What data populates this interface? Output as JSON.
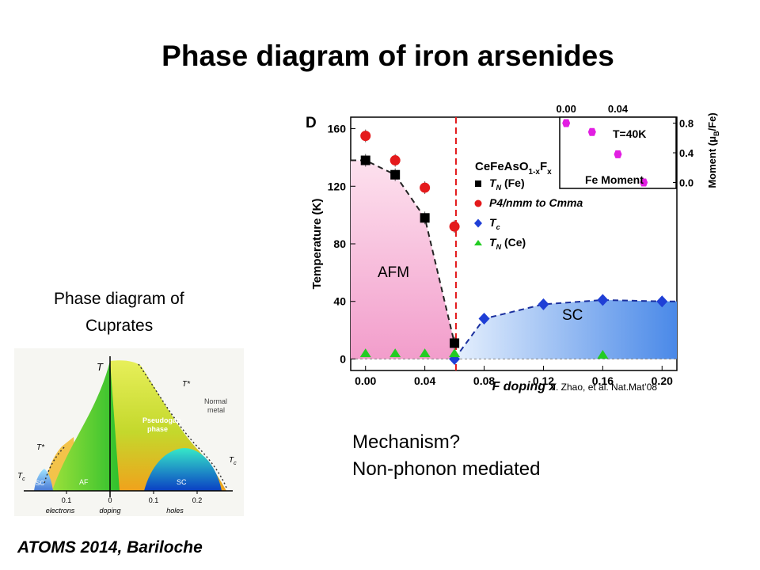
{
  "slide": {
    "title": "Phase diagram of iron arsenides",
    "cuprate_caption_line1": "Phase diagram of",
    "cuprate_caption_line2": "Cuprates",
    "mechanism_line1": "Mechanism?",
    "mechanism_line2": "Non-phonon mediated",
    "footer": "ATOMS 2014, Bariloche"
  },
  "colors": {
    "afm_fill": "#f7a8d2",
    "sc_fill": "#6fa3ec",
    "tn_fe": "#000000",
    "structural": "#e41a1c",
    "tc": "#1f3fd6",
    "tn_ce": "#22cc22",
    "moment": "#e21ee2",
    "divider": "#e41a1c"
  },
  "chart_data": [
    {
      "type": "scatter",
      "panel_label": "D",
      "xlabel": "F doping x",
      "ylabel": "Temperature (K)",
      "xlim": [
        -0.01,
        0.21
      ],
      "ylim": [
        -8,
        168
      ],
      "xticks": [
        "0.00",
        "0.04",
        "0.08",
        "0.12",
        "0.16",
        "0.20"
      ],
      "xtick_values": [
        0,
        0.04,
        0.08,
        0.12,
        0.16,
        0.2
      ],
      "yticks": [
        "0",
        "40",
        "80",
        "120",
        "160"
      ],
      "ytick_values": [
        0,
        40,
        80,
        120,
        160
      ],
      "vertical_line_x": 0.061,
      "compound": "CeFeAsO",
      "compound_sub": "1-x",
      "compound_tail": "F",
      "compound_sub2": "x",
      "regions": [
        "AFM",
        "SC"
      ],
      "credit": "J. Zhao, et al. Nat.Mat’08",
      "series": [
        {
          "name": "T",
          "sub": "N",
          "paren": "(Fe)",
          "marker": "square",
          "x": [
            0,
            0.02,
            0.04,
            0.06
          ],
          "y": [
            138,
            128,
            98,
            11
          ]
        },
        {
          "name": "P4/nmm to Cmma",
          "marker": "circle",
          "x": [
            0,
            0.02,
            0.04,
            0.06
          ],
          "y": [
            155,
            138,
            119,
            92
          ]
        },
        {
          "name": "T",
          "sub": "c",
          "marker": "diamond",
          "x": [
            0.06,
            0.08,
            0.12,
            0.16,
            0.2
          ],
          "y": [
            0,
            28,
            38,
            41,
            40
          ]
        },
        {
          "name": "T",
          "sub": "N",
          "paren": "(Ce)",
          "marker": "triangle",
          "x": [
            0,
            0.02,
            0.04,
            0.06,
            0.16
          ],
          "y": [
            4,
            4,
            4,
            4,
            3
          ]
        }
      ],
      "inset": {
        "type": "scatter",
        "label": "Fe Moment",
        "temperature_label": "T=40K",
        "ylabel": "Moment (μ",
        "ylabel_sub": "B",
        "ylabel_tail": "/Fe)",
        "xlim": [
          -0.005,
          0.085
        ],
        "ylim": [
          -0.08,
          0.88
        ],
        "xticks": [
          "0.00",
          "0.04"
        ],
        "xtick_values": [
          0,
          0.04
        ],
        "yticks": [
          "0.0",
          "0.4",
          "0.8"
        ],
        "ytick_values": [
          0,
          0.4,
          0.8
        ],
        "x": [
          0,
          0.02,
          0.04,
          0.06
        ],
        "y": [
          0.8,
          0.68,
          0.38,
          0.0
        ]
      }
    },
    {
      "type": "area",
      "axis_title": "T",
      "xtick_labels": [
        "0.1",
        "0",
        "0.1",
        "0.2"
      ],
      "xtick_values": [
        -0.1,
        0,
        0.1,
        0.2
      ],
      "xlabels": [
        "electrons",
        "doping",
        "holes"
      ],
      "xlim": [
        -0.2,
        0.29
      ],
      "regions": [
        {
          "name": "AF",
          "color": "#5ed12e"
        },
        {
          "name": "SC",
          "color": "#0c47c9"
        },
        {
          "name": "SC",
          "color": "#0c47c9"
        },
        {
          "name": "Pseudogap phase",
          "color": "#a6d02a"
        },
        {
          "name": "Normal metal",
          "color": "#ffffff"
        }
      ],
      "line_labels": [
        "T*",
        "T*",
        "T",
        "T"
      ],
      "line_label_subs": [
        "",
        "",
        "c",
        "c"
      ],
      "pseudogap_l1": "Pseudogap",
      "pseudogap_l2": "phase",
      "normal_l1": "Normal",
      "normal_l2": "metal"
    }
  ]
}
